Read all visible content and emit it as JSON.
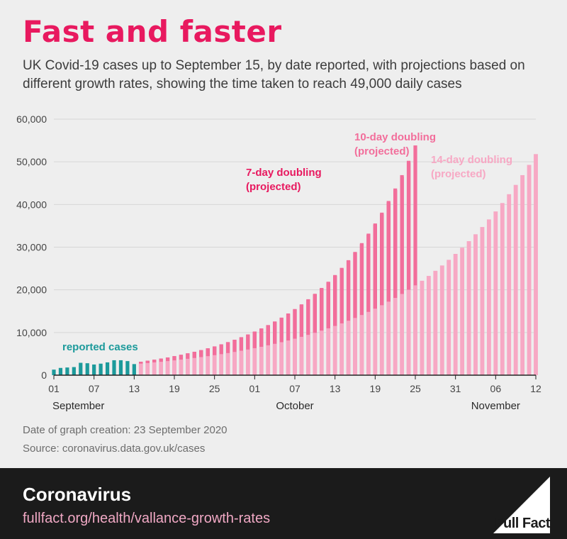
{
  "header": {
    "title": "Fast and faster",
    "subtitle": "UK Covid-19 cases up to September 15, by date reported, with projections based on different growth rates, showing the time taken to reach 49,000 daily cases"
  },
  "chart_data": {
    "type": "bar",
    "x": {
      "start": "2020-09-01",
      "end": "2020-11-12",
      "unit": "date"
    },
    "ylim": [
      0,
      60000
    ],
    "yticks": [
      0,
      10000,
      20000,
      30000,
      40000,
      50000,
      60000
    ],
    "ytick_labels": [
      "0",
      "10,000",
      "20,000",
      "30,000",
      "40,000",
      "50,000",
      "60,000"
    ],
    "xticks": [
      {
        "date": "2020-09-01",
        "label": "01"
      },
      {
        "date": "2020-09-07",
        "label": "07"
      },
      {
        "date": "2020-09-13",
        "label": "13"
      },
      {
        "date": "2020-09-19",
        "label": "19"
      },
      {
        "date": "2020-09-25",
        "label": "25"
      },
      {
        "date": "2020-10-01",
        "label": "01"
      },
      {
        "date": "2020-10-07",
        "label": "07"
      },
      {
        "date": "2020-10-13",
        "label": "13"
      },
      {
        "date": "2020-10-19",
        "label": "19"
      },
      {
        "date": "2020-10-25",
        "label": "25"
      },
      {
        "date": "2020-10-31",
        "label": "31"
      },
      {
        "date": "2020-11-06",
        "label": "06"
      },
      {
        "date": "2020-11-12",
        "label": "12"
      }
    ],
    "month_labels": [
      {
        "date": "2020-09-01",
        "label": "September"
      },
      {
        "date": "2020-10-07",
        "label": "October"
      },
      {
        "date": "2020-11-06",
        "label": "November"
      }
    ],
    "grid": "horizontal",
    "series": [
      {
        "name": "reported cases",
        "color": "#1c9a9b",
        "label_lines": [
          "reported cases"
        ],
        "start": "2020-09-01",
        "values": [
          1300,
          1700,
          1800,
          1900,
          2900,
          2800,
          2500,
          2700,
          3000,
          3500,
          3500,
          3300,
          2600
        ]
      },
      {
        "name": "7-day doubling (projected)",
        "color": "#e8195f",
        "label_lines": [
          "7-day doubling",
          "(projected)"
        ],
        "start": "2020-09-14",
        "values": [
          3150,
          3370,
          3610,
          3870,
          4150,
          4440,
          4760,
          5100,
          5460,
          5850,
          6270,
          6720,
          7200,
          7710,
          8260,
          8850,
          9490,
          10170,
          10900,
          11680,
          12510,
          13410,
          14370,
          15400,
          16500,
          17680,
          18940,
          20300,
          21750,
          23300,
          24970,
          26760,
          28670,
          30720,
          32920,
          35270,
          37790,
          40500,
          43390,
          46500,
          49810
        ]
      },
      {
        "name": "10-day doubling (projected)",
        "color": "#f26e9b",
        "label_lines": [
          "10-day doubling",
          "(projected)"
        ],
        "start": "2020-09-14",
        "values": [
          3150,
          3380,
          3620,
          3880,
          4160,
          4460,
          4780,
          5120,
          5490,
          5880,
          6300,
          6750,
          7240,
          7760,
          8310,
          8910,
          9550,
          10230,
          10960,
          11750,
          12590,
          13490,
          14460,
          15500,
          16600,
          17800,
          19070,
          20440,
          21900,
          23470,
          25150,
          26950,
          28880,
          30950,
          33170,
          35550,
          38090,
          40820,
          43750,
          46880,
          50240,
          53840
        ]
      },
      {
        "name": "14-day doubling (projected)",
        "color": "#f7a8c4",
        "label_lines": [
          "14-day doubling",
          "(projected)"
        ],
        "start": "2020-09-14",
        "values": [
          2700,
          2840,
          2990,
          3140,
          3300,
          3470,
          3650,
          3840,
          4030,
          4240,
          4460,
          4690,
          4930,
          5180,
          5450,
          5730,
          6020,
          6330,
          6650,
          7000,
          7350,
          7730,
          8130,
          8550,
          8990,
          9450,
          9930,
          10440,
          10980,
          11540,
          12140,
          12760,
          13410,
          14100,
          14830,
          15590,
          16390,
          17230,
          18110,
          19040,
          20020,
          21050,
          22130,
          23260,
          24460,
          25710,
          27030,
          28420,
          29880,
          31410,
          33020,
          34720,
          36500,
          38370,
          40340,
          42410,
          44590,
          46880,
          49280,
          51810
        ]
      }
    ]
  },
  "notes": {
    "date_created": "Date of graph creation: 23 September 2020",
    "source": "Source: coronavirus.data.gov.uk/cases"
  },
  "footer": {
    "topic": "Coronavirus",
    "link": "fullfact.org/health/vallance-growth-rates",
    "logo_text": "Full Fact"
  },
  "colors": {
    "background": "#eeeeee",
    "title": "#e8195f",
    "footer_bg": "#1b1b1b"
  }
}
